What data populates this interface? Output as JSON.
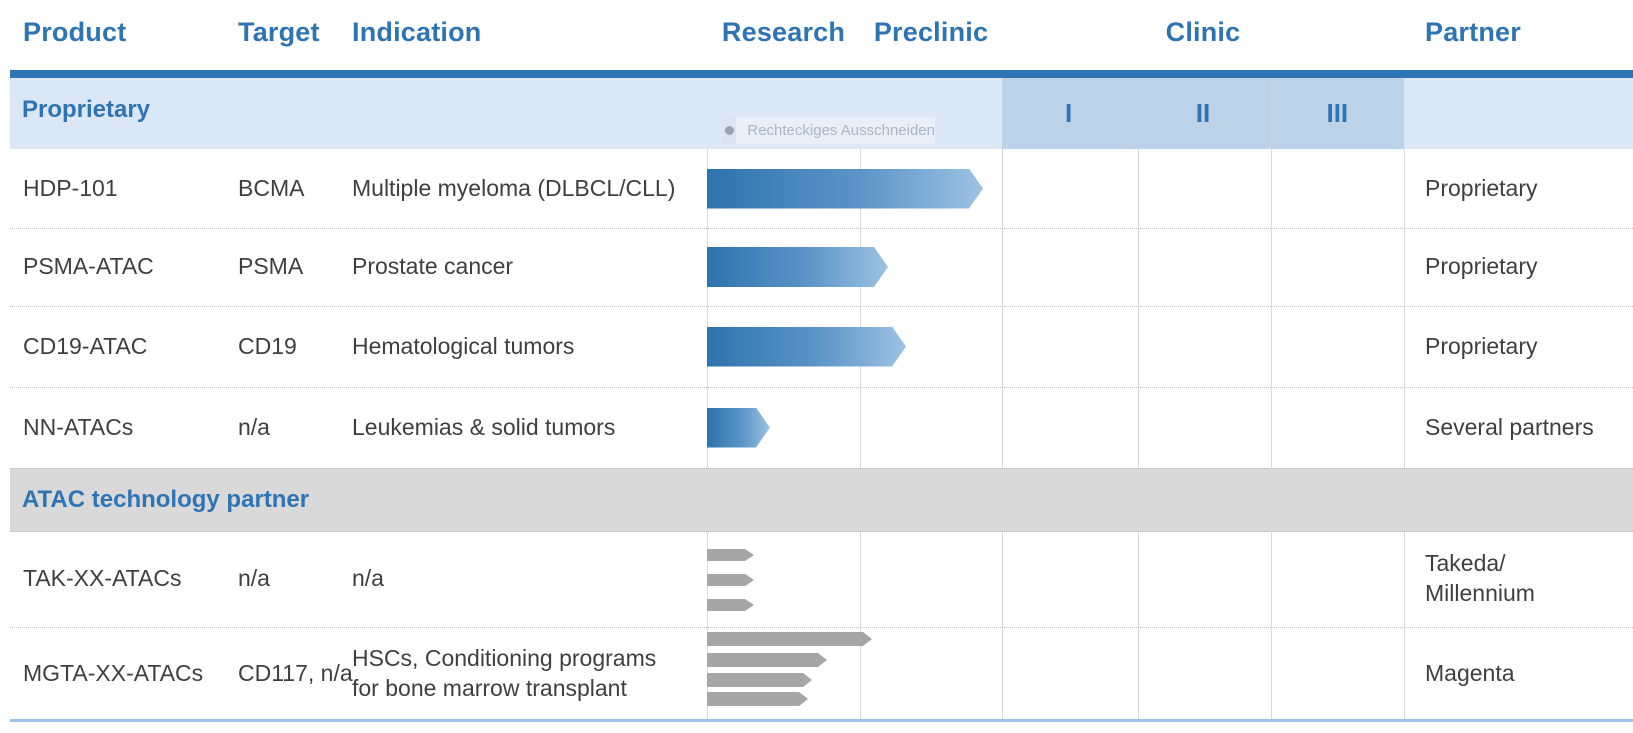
{
  "header": {
    "product": "Product",
    "target": "Target",
    "indication": "Indication",
    "research": "Research",
    "preclinic": "Preclinic",
    "clinic": "Clinic",
    "partner": "Partner"
  },
  "clinic_phases": {
    "p1": "I",
    "p2": "II",
    "p3": "III"
  },
  "sections": {
    "proprietary": "Proprietary",
    "atac": "ATAC technology partner"
  },
  "watermark": {
    "text": "Rechteckiges Ausschneiden",
    "icon": "dot-icon"
  },
  "rows": [
    {
      "product": "HDP-101",
      "target": "BCMA",
      "indication": "Multiple myeloma (DLBCL/CLL)",
      "partner": "Proprietary",
      "stage_reached": "preclinic-late",
      "bars": [
        276
      ]
    },
    {
      "product": "PSMA-ATAC",
      "target": "PSMA",
      "indication": "Prostate cancer",
      "partner": "Proprietary",
      "stage_reached": "preclinic-early",
      "bars": [
        181
      ]
    },
    {
      "product": "CD19-ATAC",
      "target": "CD19",
      "indication": "Hematological tumors",
      "partner": "Proprietary",
      "stage_reached": "preclinic-early",
      "bars": [
        199
      ]
    },
    {
      "product": "NN-ATACs",
      "target": "n/a",
      "indication": "Leukemias & solid tumors",
      "partner": "Several partners",
      "stage_reached": "research-mid",
      "bars": [
        63
      ]
    },
    {
      "product": "TAK-XX-ATACs",
      "target": "n/a",
      "indication": "n/a",
      "partner": "Takeda/\nMillennium",
      "stage_reached": "research-early",
      "bars": [
        47,
        47,
        47
      ]
    },
    {
      "product": "MGTA-XX-ATACs",
      "target": "CD117, n/a",
      "indication": "HSCs, Conditioning programs\nfor bone marrow transplant",
      "partner": "Magenta",
      "stage_reached": "research-to-preclinic",
      "bars": [
        165,
        120,
        105,
        101
      ]
    }
  ],
  "colors": {
    "accent_blue": "#2e74b5",
    "thick_line": "#2e75b6",
    "band_light": "#dbe7f4",
    "band_clinic": "#bcd2e8",
    "band_gray": "#d9d9d9",
    "body_text": "#3f3f3f",
    "bar_gradient_start": "#2e73ad",
    "bar_gradient_end": "#9cc3e3",
    "bar_gray": "#a6a6a6",
    "bottom_line": "#9dc3e6"
  }
}
